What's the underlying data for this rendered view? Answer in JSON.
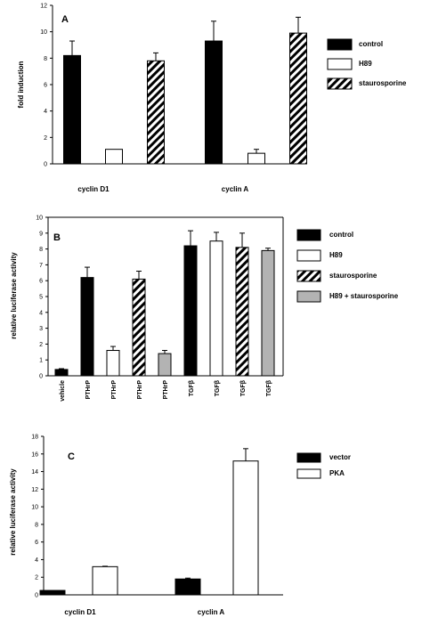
{
  "colors": {
    "solid": "#000000",
    "open": "#ffffff",
    "gray": "#b3b3b3",
    "axis": "#000000"
  },
  "chart_data": [
    {
      "type": "bar",
      "panel": "A",
      "title": "",
      "ylabel": "fold induction",
      "xlabel": "",
      "ylim": [
        0,
        12
      ],
      "yticks": [
        0,
        2,
        4,
        6,
        8,
        10,
        12
      ],
      "grid": false,
      "legend_position": "right",
      "group_labels": [
        "cyclin D1",
        "cyclin A"
      ],
      "series": [
        {
          "name": "control",
          "fill": "solid",
          "values": [
            8.2,
            9.3
          ],
          "errors": [
            1.1,
            1.5
          ]
        },
        {
          "name": "H89",
          "fill": "open",
          "values": [
            1.1,
            0.8
          ],
          "errors": [
            0.0,
            0.3
          ]
        },
        {
          "name": "staurosporine",
          "fill": "hatch",
          "values": [
            7.8,
            9.9
          ],
          "errors": [
            0.6,
            1.2
          ]
        }
      ]
    },
    {
      "type": "bar",
      "panel": "B",
      "title": "",
      "ylabel": "relative luciferase activity",
      "xlabel": "",
      "ylim": [
        0,
        10
      ],
      "yticks": [
        0,
        1,
        2,
        3,
        4,
        5,
        6,
        7,
        8,
        9,
        10
      ],
      "grid": false,
      "legend_position": "right",
      "categories": [
        "vehicle",
        "PTHrP",
        "PTHrP",
        "PTHrP",
        "PTHrP",
        "TGFβ",
        "TGFβ",
        "TGFβ",
        "TGFβ"
      ],
      "values": [
        0.4,
        6.2,
        1.6,
        6.1,
        1.4,
        8.2,
        8.5,
        8.1,
        7.9
      ],
      "errors": [
        0.05,
        0.65,
        0.25,
        0.5,
        0.2,
        0.95,
        0.55,
        0.9,
        0.15
      ],
      "bar_fills": [
        "solid",
        "solid",
        "open",
        "hatch",
        "gray",
        "solid",
        "open",
        "hatch",
        "gray"
      ],
      "series": [
        {
          "name": "control",
          "fill": "solid"
        },
        {
          "name": "H89",
          "fill": "open"
        },
        {
          "name": "staurosporine",
          "fill": "hatch"
        },
        {
          "name": "H89 + staurosporine",
          "fill": "gray"
        }
      ]
    },
    {
      "type": "bar",
      "panel": "C",
      "title": "",
      "ylabel": "relative luciferase activity",
      "xlabel": "",
      "ylim": [
        0,
        18
      ],
      "yticks": [
        0,
        2,
        4,
        6,
        8,
        10,
        12,
        14,
        16,
        18
      ],
      "grid": false,
      "legend_position": "right",
      "group_labels": [
        "cyclin D1",
        "cyclin A"
      ],
      "series": [
        {
          "name": "vector",
          "fill": "solid",
          "values": [
            0.5,
            1.8
          ],
          "errors": [
            0.0,
            0.1
          ]
        },
        {
          "name": "PKA",
          "fill": "open",
          "values": [
            3.2,
            15.2
          ],
          "errors": [
            0.05,
            1.4
          ]
        }
      ]
    }
  ]
}
